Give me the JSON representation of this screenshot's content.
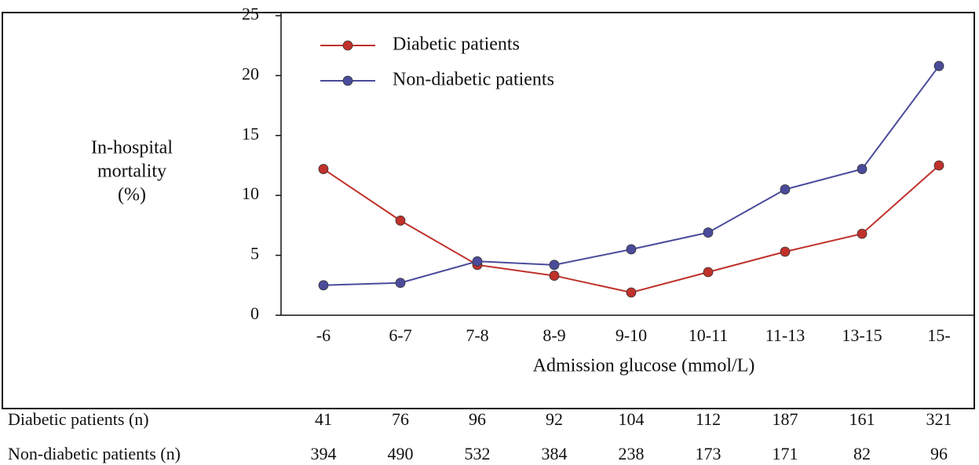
{
  "chart_data": {
    "type": "line",
    "ylabel": [
      "In-hospital",
      "mortality",
      "(%)"
    ],
    "xlabel": "Admission glucose (mmol/L)",
    "categories": [
      "-6",
      "6-7",
      "7-8",
      "8-9",
      "9-10",
      "10-11",
      "11-13",
      "13-15",
      "15-"
    ],
    "series": [
      {
        "name": "Diabetic patients",
        "color": "#c0312b",
        "values": [
          12.2,
          7.9,
          4.2,
          3.3,
          1.9,
          3.6,
          5.3,
          6.8,
          12.5
        ]
      },
      {
        "name": "Non-diabetic patients",
        "color": "#4b4b9c",
        "values": [
          2.5,
          2.7,
          4.5,
          4.2,
          5.5,
          6.9,
          10.5,
          12.2,
          20.8
        ]
      }
    ],
    "ylim": [
      0,
      25
    ],
    "yticks": [
      0,
      5,
      10,
      15,
      20,
      25
    ],
    "legend": "upper left"
  },
  "table": {
    "rows": [
      {
        "label": "Diabetic patients (n)",
        "values": [
          41,
          76,
          96,
          92,
          104,
          112,
          187,
          161,
          321
        ]
      },
      {
        "label": "Non-diabetic patients (n)",
        "values": [
          394,
          490,
          532,
          384,
          238,
          173,
          171,
          82,
          96
        ]
      }
    ]
  }
}
